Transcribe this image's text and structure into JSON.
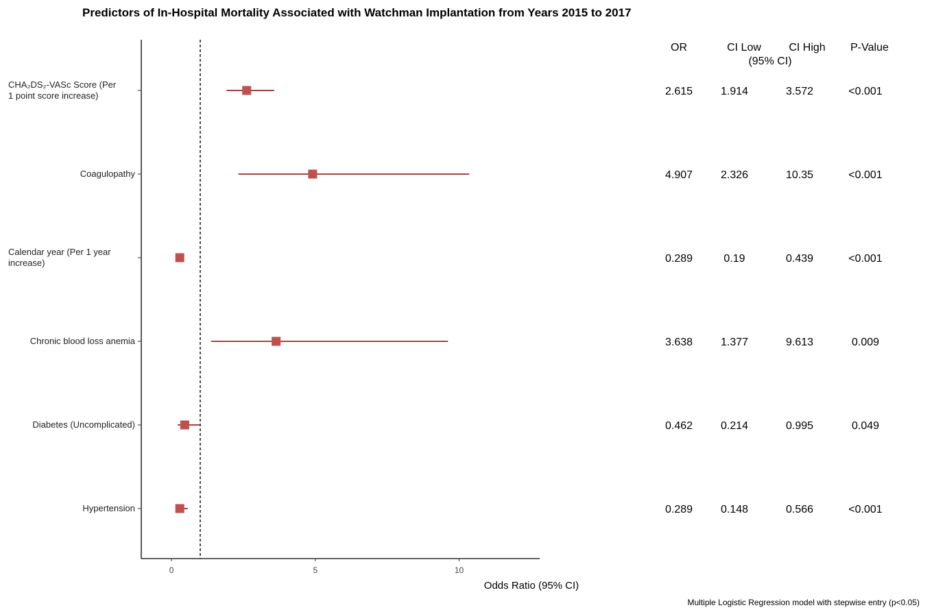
{
  "chart_data": {
    "type": "forest",
    "title": "Predictors of In-Hospital Mortality Associated with Watchman Implantation from Years 2015 to 2017",
    "xlabel": "Odds Ratio (95% CI)",
    "xlim": [
      -1.05,
      12.8
    ],
    "x_ticks": [
      0,
      5,
      10
    ],
    "reference_line": 1,
    "marker_color": "#c0504d",
    "line_color": "#a0453f",
    "columns": [
      {
        "label": "OR"
      },
      {
        "label": "CI Low\n(95% CI)"
      },
      {
        "label": "CI High"
      },
      {
        "label": "P-Value"
      }
    ],
    "rows": [
      {
        "label": [
          "CHA₂DS₂-VASc Score (Per",
          "1 point score increase)"
        ],
        "or": 2.615,
        "ci_low": 1.914,
        "ci_high": 3.572,
        "or_text": "2.615",
        "low_text": "1.914",
        "high_text": "3.572",
        "p_text": "<0.001"
      },
      {
        "label": [
          "Coagulopathy"
        ],
        "or": 4.907,
        "ci_low": 2.326,
        "ci_high": 10.35,
        "or_text": "4.907",
        "low_text": "2.326",
        "high_text": "10.35",
        "p_text": "<0.001"
      },
      {
        "label": [
          "Calendar year (Per 1 year",
          "increase)"
        ],
        "or": 0.289,
        "ci_low": 0.19,
        "ci_high": 0.439,
        "or_text": "0.289",
        "low_text": "0.19",
        "high_text": "0.439",
        "p_text": "<0.001"
      },
      {
        "label": [
          "Chronic blood loss anemia"
        ],
        "or": 3.638,
        "ci_low": 1.377,
        "ci_high": 9.613,
        "or_text": "3.638",
        "low_text": "1.377",
        "high_text": "9.613",
        "p_text": "0.009"
      },
      {
        "label": [
          "Diabetes (Uncomplicated)"
        ],
        "or": 0.462,
        "ci_low": 0.214,
        "ci_high": 0.995,
        "or_text": "0.462",
        "low_text": "0.214",
        "high_text": "0.995",
        "p_text": "0.049"
      },
      {
        "label": [
          "Hypertension"
        ],
        "or": 0.289,
        "ci_low": 0.148,
        "ci_high": 0.566,
        "or_text": "0.289",
        "low_text": "0.148",
        "high_text": "0.566",
        "p_text": "<0.001"
      }
    ],
    "footnote": "Multiple Logistic Regression model with stepwise entry (p<0.05)"
  }
}
